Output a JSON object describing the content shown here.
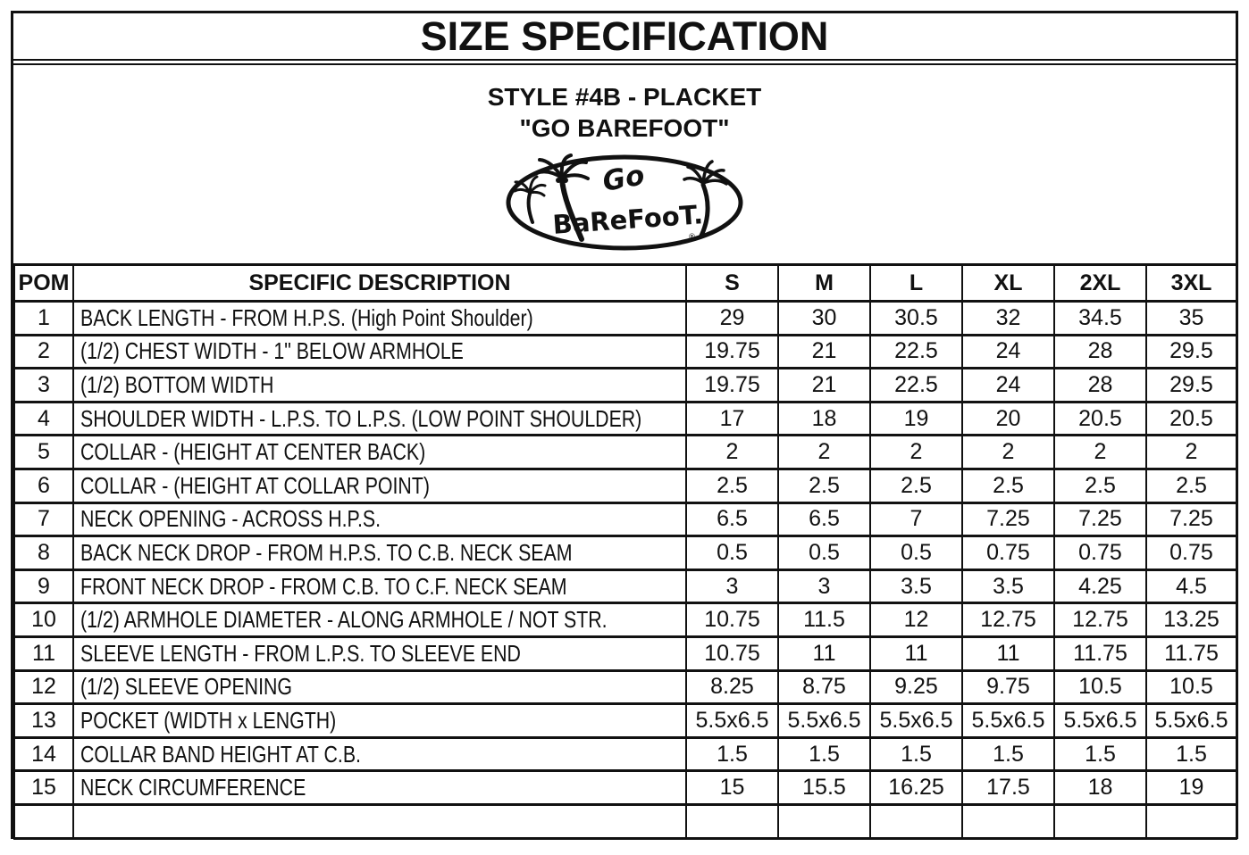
{
  "title": "SIZE SPECIFICATION",
  "subtitle": {
    "line1": "STYLE #4B - PLACKET",
    "line2": "\"GO BAREFOOT\""
  },
  "logo": {
    "text_top": "Go",
    "text_main": "BaReFooT.",
    "registered": "®"
  },
  "table": {
    "headers": [
      "POM",
      "SPECIFIC DESCRIPTION",
      "S",
      "M",
      "L",
      "XL",
      "2XL",
      "3XL"
    ],
    "rows": [
      {
        "pom": "1",
        "description": "BACK LENGTH - FROM H.P.S. (High Point Shoulder)",
        "values": [
          "29",
          "30",
          "30.5",
          "32",
          "34.5",
          "35"
        ]
      },
      {
        "pom": "2",
        "description": "(1/2) CHEST WIDTH - 1\" BELOW ARMHOLE",
        "values": [
          "19.75",
          "21",
          "22.5",
          "24",
          "28",
          "29.5"
        ]
      },
      {
        "pom": "3",
        "description": "(1/2) BOTTOM WIDTH",
        "values": [
          "19.75",
          "21",
          "22.5",
          "24",
          "28",
          "29.5"
        ]
      },
      {
        "pom": "4",
        "description": "SHOULDER WIDTH - L.P.S. TO L.P.S. (LOW POINT SHOULDER)",
        "values": [
          "17",
          "18",
          "19",
          "20",
          "20.5",
          "20.5"
        ]
      },
      {
        "pom": "5",
        "description": "COLLAR - (HEIGHT AT CENTER BACK)",
        "values": [
          "2",
          "2",
          "2",
          "2",
          "2",
          "2"
        ]
      },
      {
        "pom": "6",
        "description": "COLLAR - (HEIGHT AT COLLAR POINT)",
        "values": [
          "2.5",
          "2.5",
          "2.5",
          "2.5",
          "2.5",
          "2.5"
        ]
      },
      {
        "pom": "7",
        "description": "NECK OPENING - ACROSS H.P.S.",
        "values": [
          "6.5",
          "6.5",
          "7",
          "7.25",
          "7.25",
          "7.25"
        ]
      },
      {
        "pom": "8",
        "description": "BACK NECK DROP - FROM H.P.S. TO C.B. NECK SEAM",
        "values": [
          "0.5",
          "0.5",
          "0.5",
          "0.75",
          "0.75",
          "0.75"
        ]
      },
      {
        "pom": "9",
        "description": "FRONT NECK DROP - FROM C.B. TO C.F. NECK SEAM",
        "values": [
          "3",
          "3",
          "3.5",
          "3.5",
          "4.25",
          "4.5"
        ]
      },
      {
        "pom": "10",
        "description": "(1/2) ARMHOLE DIAMETER - ALONG ARMHOLE / NOT STR.",
        "values": [
          "10.75",
          "11.5",
          "12",
          "12.75",
          "12.75",
          "13.25"
        ]
      },
      {
        "pom": "11",
        "description": "SLEEVE LENGTH - FROM L.P.S. TO SLEEVE END",
        "values": [
          "10.75",
          "11",
          "11",
          "11",
          "11.75",
          "11.75"
        ]
      },
      {
        "pom": "12",
        "description": "(1/2) SLEEVE OPENING",
        "values": [
          "8.25",
          "8.75",
          "9.25",
          "9.75",
          "10.5",
          "10.5"
        ]
      },
      {
        "pom": "13",
        "description": "POCKET (WIDTH x LENGTH)",
        "values": [
          "5.5x6.5",
          "5.5x6.5",
          "5.5x6.5",
          "5.5x6.5",
          "5.5x6.5",
          "5.5x6.5"
        ]
      },
      {
        "pom": "14",
        "description": "COLLAR BAND HEIGHT AT C.B.",
        "values": [
          "1.5",
          "1.5",
          "1.5",
          "1.5",
          "1.5",
          "1.5"
        ]
      },
      {
        "pom": "15",
        "description": "NECK CIRCUMFERENCE",
        "values": [
          "15",
          "15.5",
          "16.25",
          "17.5",
          "18",
          "19"
        ]
      },
      {
        "pom": "",
        "description": "",
        "values": [
          "",
          "",
          "",
          "",
          "",
          ""
        ]
      }
    ]
  }
}
